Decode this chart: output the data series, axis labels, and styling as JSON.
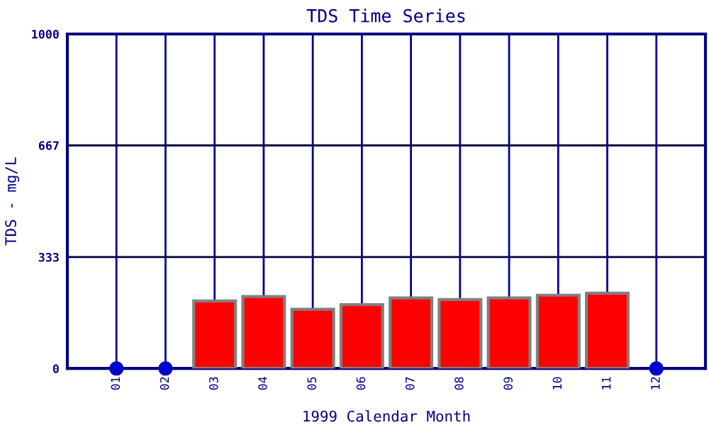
{
  "chart_data": {
    "type": "bar",
    "title": "TDS Time Series",
    "xlabel": "1999 Calendar Month",
    "ylabel": "TDS - mg/L",
    "categories": [
      "01",
      "02",
      "03",
      "04",
      "05",
      "06",
      "07",
      "08",
      "09",
      "10",
      "11",
      "12"
    ],
    "series": [
      {
        "color": "#ff0000",
        "values": [
          null,
          null,
          202,
          215,
          177,
          191,
          211,
          206,
          211,
          219,
          225,
          null
        ]
      },
      {
        "type": "scatter",
        "color": "#0000cc",
        "marker": "circle",
        "values": [
          0,
          0,
          null,
          null,
          null,
          null,
          null,
          null,
          null,
          null,
          null,
          0
        ]
      }
    ],
    "ylim": [
      0,
      1000
    ],
    "yticks": [
      0,
      333,
      667,
      1000
    ],
    "grid": true
  }
}
